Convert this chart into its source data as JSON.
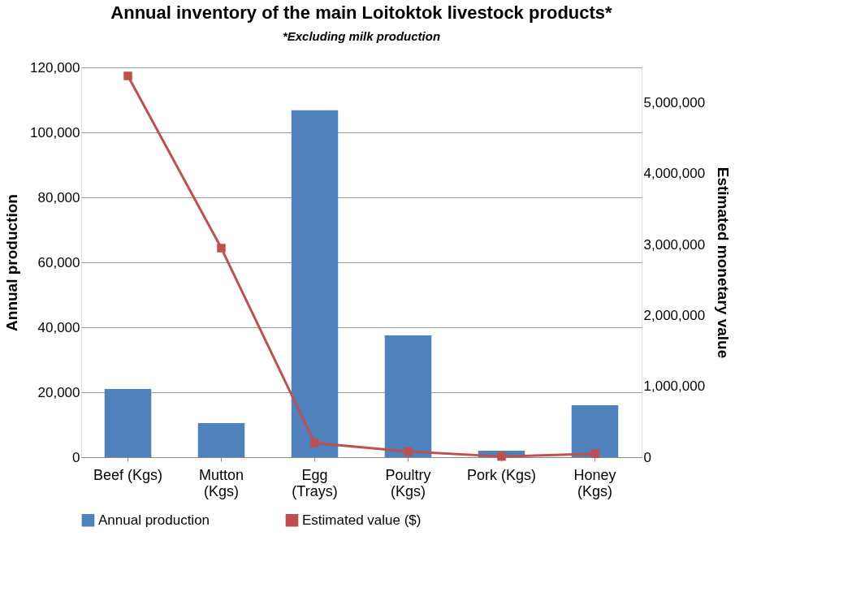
{
  "chart_data": {
    "type": "bar",
    "title": "Annual inventory of the main Loitoktok livestock products*",
    "categories": [
      "Beef (Kgs)",
      "Mutton (Kgs)",
      "Egg (Trays)",
      "Poultry (Kgs)",
      "Pork (Kgs)",
      "Honey (Kgs)"
    ],
    "series": [
      {
        "name": "Annual production",
        "color": "#4f81bd",
        "values": [
          21000,
          10500,
          106800,
          37500,
          2000,
          16000
        ]
      },
      {
        "name": "Estimated value ($)",
        "color": "#c0504d",
        "type": "line",
        "axis": "y2",
        "marker": "square",
        "values": [
          5380000,
          2950000,
          200000,
          80000,
          10000,
          50000
        ]
      }
    ],
    "ylabel": "Annual production",
    "y2label": "Estimated monetary value",
    "ylim": [
      0,
      120000
    ],
    "yticks": [
      0,
      {
        "value": 20000,
        "label": "20,000"
      },
      {
        "value": 40000,
        "label": "40,000"
      },
      {
        "value": 60000,
        "label": "60,000"
      },
      {
        "value": 80000,
        "label": "80,000"
      },
      {
        "value": 100000,
        "label": "100,000"
      },
      {
        "value": 120000,
        "label": "120,000"
      }
    ],
    "y2lim": [
      0,
      5500000
    ],
    "y2ticks": [
      0,
      {
        "value": 1000000,
        "label": "1,000,000"
      },
      {
        "value": 2000000,
        "label": "2,000,000"
      },
      {
        "value": 3000000,
        "label": "3,000,000"
      },
      {
        "value": 4000000,
        "label": "4,000,000"
      },
      {
        "value": 5000000,
        "label": "5,000,000"
      }
    ],
    "grid": "y",
    "legend": "bottom",
    "annotations": [
      "*Excluding milk production"
    ]
  }
}
